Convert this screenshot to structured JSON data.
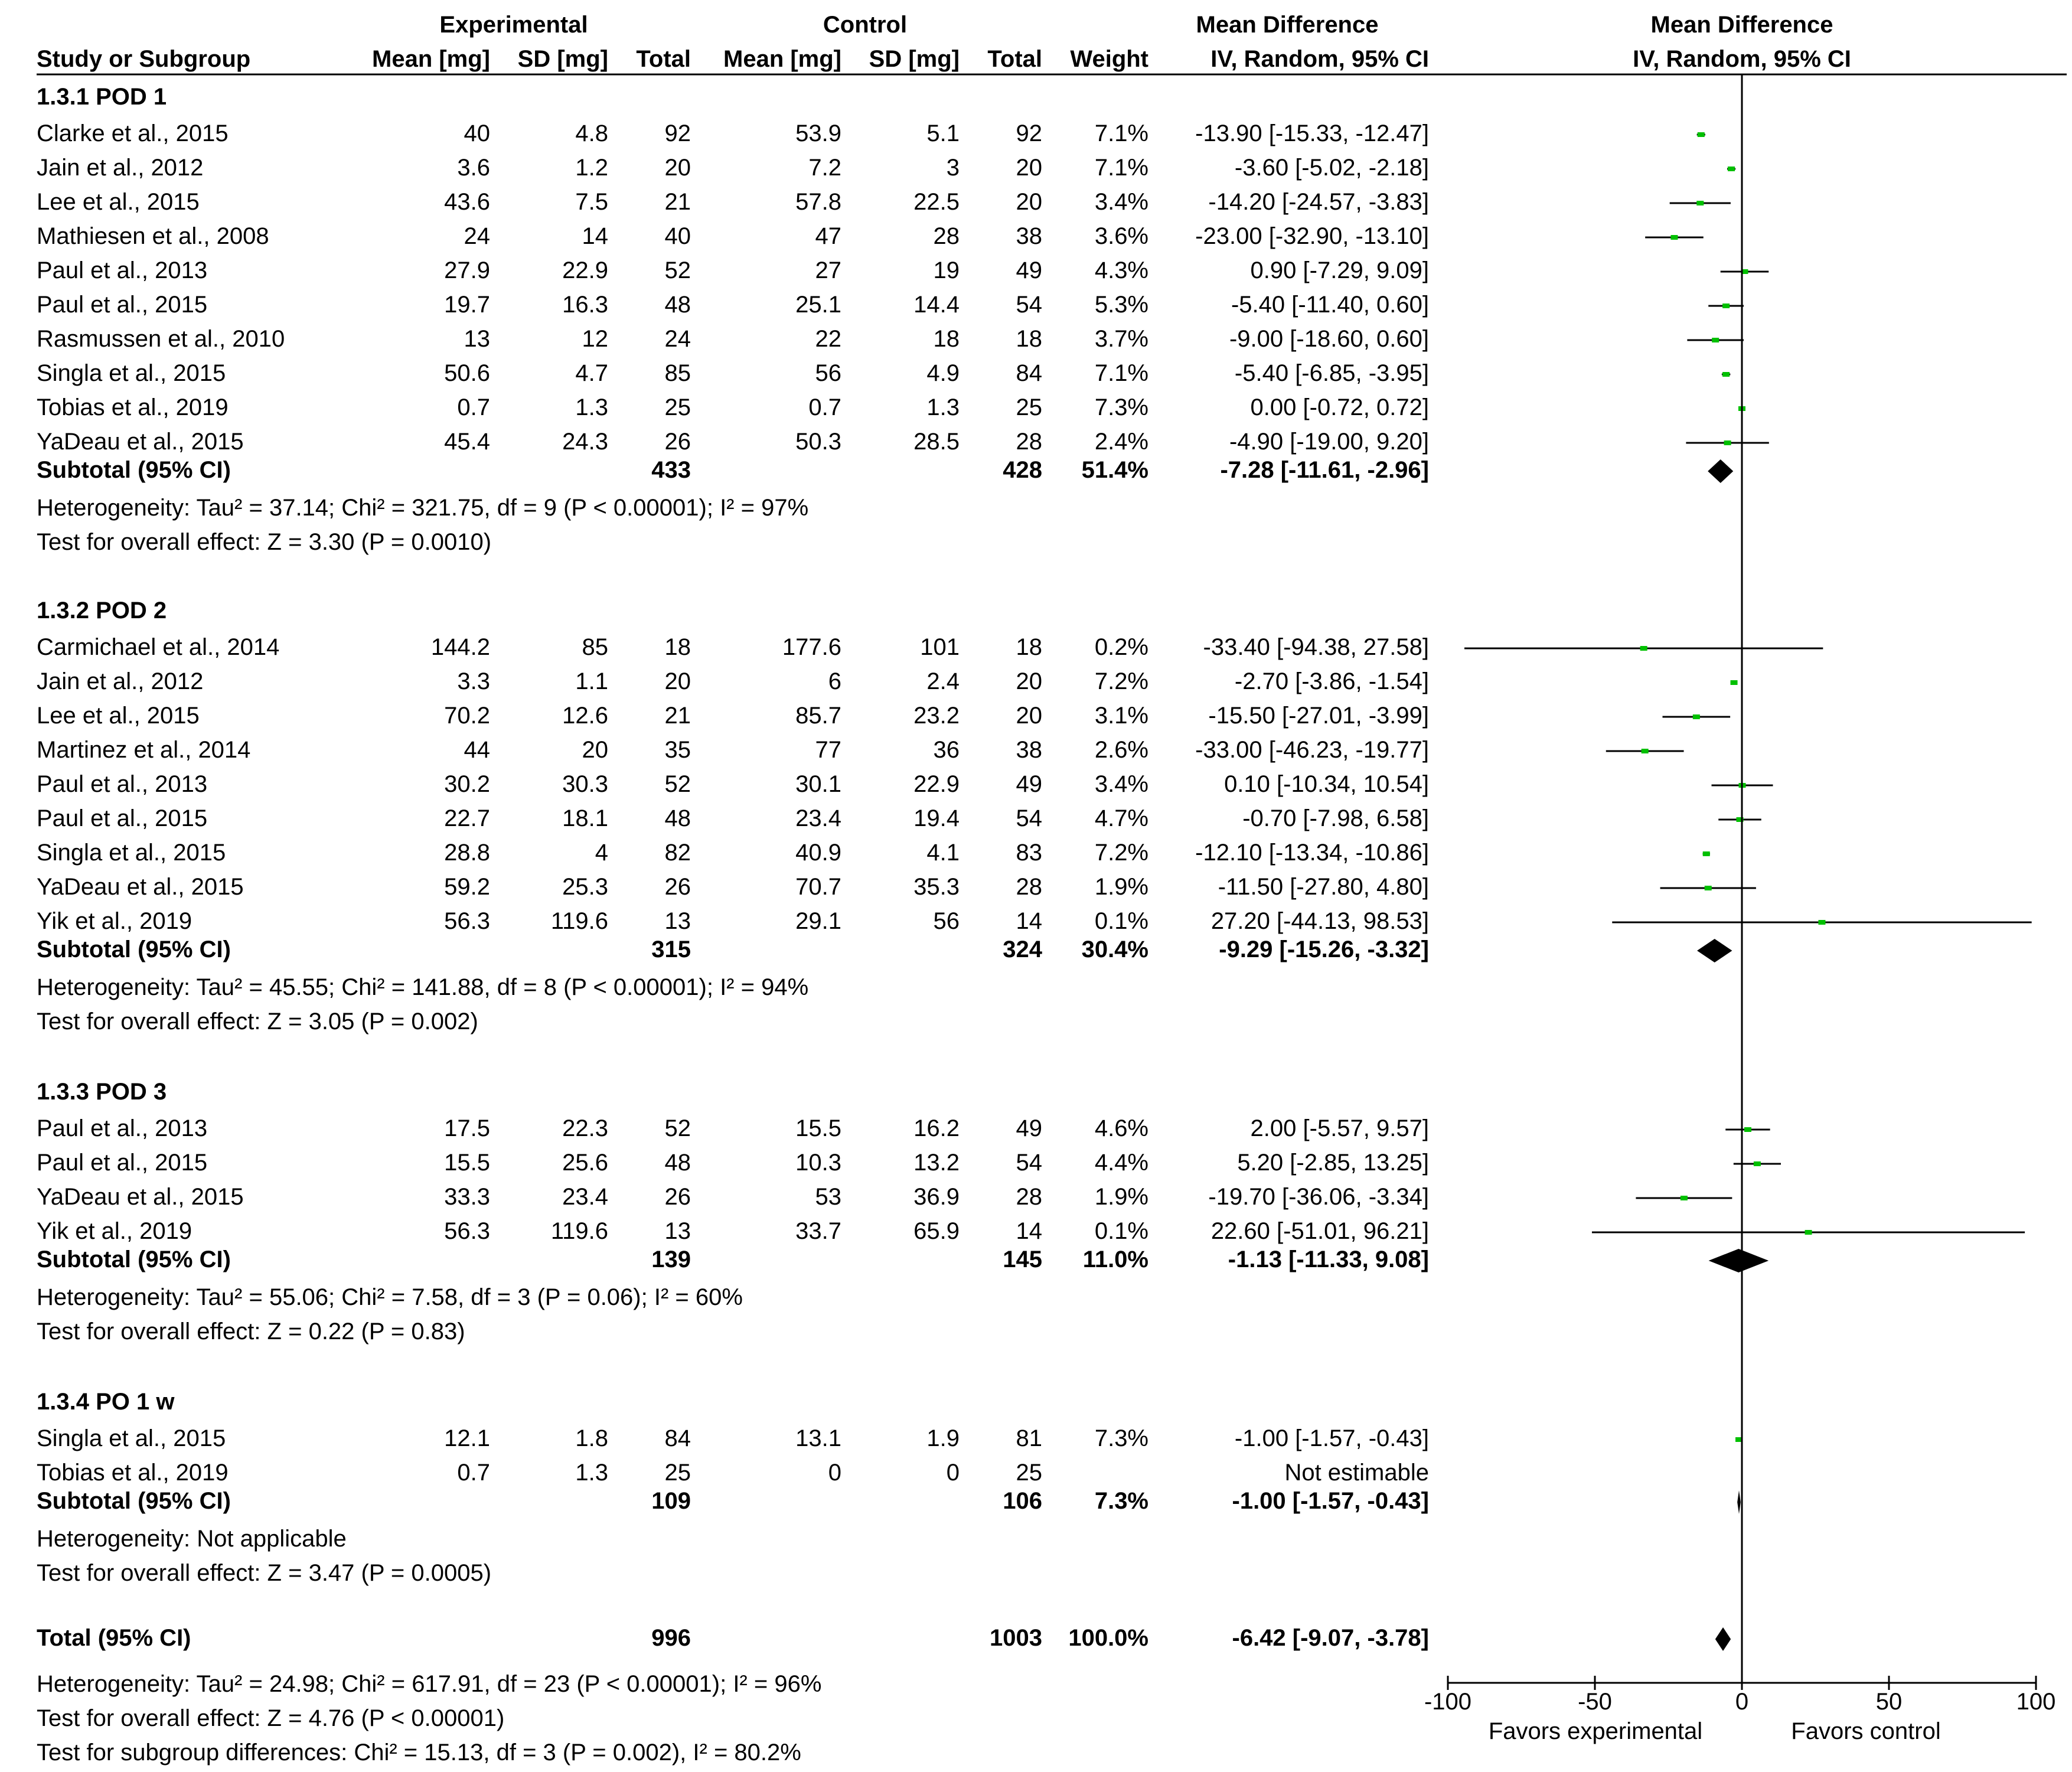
{
  "headers": {
    "experimental": "Experimental",
    "control": "Control",
    "mean_difference": "Mean Difference",
    "study": "Study or Subgroup",
    "mean_mg": "Mean [mg]",
    "sd_mg": "SD [mg]",
    "total": "Total",
    "weight": "Weight",
    "method": "IV, Random, 95% CI"
  },
  "chart_data": {
    "type": "forest",
    "title": "Mean Difference",
    "method": "IV, Random, 95% CI",
    "xlim": [
      -100,
      100
    ],
    "ticks": [
      "-100",
      "-50",
      "0",
      "50",
      "100"
    ],
    "tick_values": [
      -100,
      -50,
      0,
      50,
      100
    ],
    "xlabel_left": "Favors experimental",
    "xlabel_right": "Favors control",
    "groups": [
      {
        "label": "1.3.1 POD 1",
        "studies": [
          {
            "name": "Clarke et al., 2015",
            "e_mean": "40",
            "e_sd": "4.8",
            "e_total": "92",
            "c_mean": "53.9",
            "c_sd": "5.1",
            "c_total": "92",
            "weight": "7.1%",
            "ci": "-13.90 [-15.33, -12.47]",
            "md": -13.9,
            "lo": -15.33,
            "hi": -12.47
          },
          {
            "name": "Jain et al., 2012",
            "e_mean": "3.6",
            "e_sd": "1.2",
            "e_total": "20",
            "c_mean": "7.2",
            "c_sd": "3",
            "c_total": "20",
            "weight": "7.1%",
            "ci": "-3.60 [-5.02, -2.18]",
            "md": -3.6,
            "lo": -5.02,
            "hi": -2.18
          },
          {
            "name": "Lee et al., 2015",
            "e_mean": "43.6",
            "e_sd": "7.5",
            "e_total": "21",
            "c_mean": "57.8",
            "c_sd": "22.5",
            "c_total": "20",
            "weight": "3.4%",
            "ci": "-14.20 [-24.57, -3.83]",
            "md": -14.2,
            "lo": -24.57,
            "hi": -3.83
          },
          {
            "name": "Mathiesen et al., 2008",
            "e_mean": "24",
            "e_sd": "14",
            "e_total": "40",
            "c_mean": "47",
            "c_sd": "28",
            "c_total": "38",
            "weight": "3.6%",
            "ci": "-23.00 [-32.90, -13.10]",
            "md": -23.0,
            "lo": -32.9,
            "hi": -13.1
          },
          {
            "name": "Paul et al., 2013",
            "e_mean": "27.9",
            "e_sd": "22.9",
            "e_total": "52",
            "c_mean": "27",
            "c_sd": "19",
            "c_total": "49",
            "weight": "4.3%",
            "ci": "0.90 [-7.29, 9.09]",
            "md": 0.9,
            "lo": -7.29,
            "hi": 9.09
          },
          {
            "name": "Paul et al., 2015",
            "e_mean": "19.7",
            "e_sd": "16.3",
            "e_total": "48",
            "c_mean": "25.1",
            "c_sd": "14.4",
            "c_total": "54",
            "weight": "5.3%",
            "ci": "-5.40 [-11.40, 0.60]",
            "md": -5.4,
            "lo": -11.4,
            "hi": 0.6
          },
          {
            "name": "Rasmussen et al., 2010",
            "e_mean": "13",
            "e_sd": "12",
            "e_total": "24",
            "c_mean": "22",
            "c_sd": "18",
            "c_total": "18",
            "weight": "3.7%",
            "ci": "-9.00 [-18.60, 0.60]",
            "md": -9.0,
            "lo": -18.6,
            "hi": 0.6
          },
          {
            "name": "Singla et al., 2015",
            "e_mean": "50.6",
            "e_sd": "4.7",
            "e_total": "85",
            "c_mean": "56",
            "c_sd": "4.9",
            "c_total": "84",
            "weight": "7.1%",
            "ci": "-5.40 [-6.85, -3.95]",
            "md": -5.4,
            "lo": -6.85,
            "hi": -3.95
          },
          {
            "name": "Tobias et al., 2019",
            "e_mean": "0.7",
            "e_sd": "1.3",
            "e_total": "25",
            "c_mean": "0.7",
            "c_sd": "1.3",
            "c_total": "25",
            "weight": "7.3%",
            "ci": "0.00 [-0.72, 0.72]",
            "md": 0.0,
            "lo": -0.72,
            "hi": 0.72
          },
          {
            "name": "YaDeau et al., 2015",
            "e_mean": "45.4",
            "e_sd": "24.3",
            "e_total": "26",
            "c_mean": "50.3",
            "c_sd": "28.5",
            "c_total": "28",
            "weight": "2.4%",
            "ci": "-4.90 [-19.00, 9.20]",
            "md": -4.9,
            "lo": -19.0,
            "hi": 9.2
          }
        ],
        "subtotal": {
          "label": "Subtotal (95% CI)",
          "e_total": "433",
          "c_total": "428",
          "weight": "51.4%",
          "ci": "-7.28 [-11.61, -2.96]",
          "md": -7.28,
          "lo": -11.61,
          "hi": -2.96
        },
        "heterogeneity": "Heterogeneity: Tau² = 37.14; Chi² = 321.75, df = 9 (P < 0.00001); I² = 97%",
        "overall": "Test for overall effect: Z = 3.30 (P = 0.0010)"
      },
      {
        "label": "1.3.2 POD 2",
        "studies": [
          {
            "name": "Carmichael et al., 2014",
            "e_mean": "144.2",
            "e_sd": "85",
            "e_total": "18",
            "c_mean": "177.6",
            "c_sd": "101",
            "c_total": "18",
            "weight": "0.2%",
            "ci": "-33.40 [-94.38, 27.58]",
            "md": -33.4,
            "lo": -94.38,
            "hi": 27.58
          },
          {
            "name": "Jain et al., 2012",
            "e_mean": "3.3",
            "e_sd": "1.1",
            "e_total": "20",
            "c_mean": "6",
            "c_sd": "2.4",
            "c_total": "20",
            "weight": "7.2%",
            "ci": "-2.70 [-3.86, -1.54]",
            "md": -2.7,
            "lo": -3.86,
            "hi": -1.54
          },
          {
            "name": "Lee et al., 2015",
            "e_mean": "70.2",
            "e_sd": "12.6",
            "e_total": "21",
            "c_mean": "85.7",
            "c_sd": "23.2",
            "c_total": "20",
            "weight": "3.1%",
            "ci": "-15.50 [-27.01, -3.99]",
            "md": -15.5,
            "lo": -27.01,
            "hi": -3.99
          },
          {
            "name": "Martinez et al., 2014",
            "e_mean": "44",
            "e_sd": "20",
            "e_total": "35",
            "c_mean": "77",
            "c_sd": "36",
            "c_total": "38",
            "weight": "2.6%",
            "ci": "-33.00 [-46.23, -19.77]",
            "md": -33.0,
            "lo": -46.23,
            "hi": -19.77
          },
          {
            "name": "Paul et al., 2013",
            "e_mean": "30.2",
            "e_sd": "30.3",
            "e_total": "52",
            "c_mean": "30.1",
            "c_sd": "22.9",
            "c_total": "49",
            "weight": "3.4%",
            "ci": "0.10 [-10.34, 10.54]",
            "md": 0.1,
            "lo": -10.34,
            "hi": 10.54
          },
          {
            "name": "Paul et al., 2015",
            "e_mean": "22.7",
            "e_sd": "18.1",
            "e_total": "48",
            "c_mean": "23.4",
            "c_sd": "19.4",
            "c_total": "54",
            "weight": "4.7%",
            "ci": "-0.70 [-7.98, 6.58]",
            "md": -0.7,
            "lo": -7.98,
            "hi": 6.58
          },
          {
            "name": "Singla et al., 2015",
            "e_mean": "28.8",
            "e_sd": "4",
            "e_total": "82",
            "c_mean": "40.9",
            "c_sd": "4.1",
            "c_total": "83",
            "weight": "7.2%",
            "ci": "-12.10 [-13.34, -10.86]",
            "md": -12.1,
            "lo": -13.34,
            "hi": -10.86
          },
          {
            "name": "YaDeau et al., 2015",
            "e_mean": "59.2",
            "e_sd": "25.3",
            "e_total": "26",
            "c_mean": "70.7",
            "c_sd": "35.3",
            "c_total": "28",
            "weight": "1.9%",
            "ci": "-11.50 [-27.80, 4.80]",
            "md": -11.5,
            "lo": -27.8,
            "hi": 4.8
          },
          {
            "name": "Yik et al., 2019",
            "e_mean": "56.3",
            "e_sd": "119.6",
            "e_total": "13",
            "c_mean": "29.1",
            "c_sd": "56",
            "c_total": "14",
            "weight": "0.1%",
            "ci": "27.20 [-44.13, 98.53]",
            "md": 27.2,
            "lo": -44.13,
            "hi": 98.53
          }
        ],
        "subtotal": {
          "label": "Subtotal (95% CI)",
          "e_total": "315",
          "c_total": "324",
          "weight": "30.4%",
          "ci": "-9.29 [-15.26, -3.32]",
          "md": -9.29,
          "lo": -15.26,
          "hi": -3.32
        },
        "heterogeneity": "Heterogeneity: Tau² = 45.55; Chi² = 141.88, df = 8 (P < 0.00001); I² = 94%",
        "overall": "Test for overall effect: Z = 3.05 (P = 0.002)"
      },
      {
        "label": "1.3.3 POD 3",
        "studies": [
          {
            "name": "Paul et al., 2013",
            "e_mean": "17.5",
            "e_sd": "22.3",
            "e_total": "52",
            "c_mean": "15.5",
            "c_sd": "16.2",
            "c_total": "49",
            "weight": "4.6%",
            "ci": "2.00 [-5.57, 9.57]",
            "md": 2.0,
            "lo": -5.57,
            "hi": 9.57
          },
          {
            "name": "Paul et al., 2015",
            "e_mean": "15.5",
            "e_sd": "25.6",
            "e_total": "48",
            "c_mean": "10.3",
            "c_sd": "13.2",
            "c_total": "54",
            "weight": "4.4%",
            "ci": "5.20 [-2.85, 13.25]",
            "md": 5.2,
            "lo": -2.85,
            "hi": 13.25
          },
          {
            "name": "YaDeau et al., 2015",
            "e_mean": "33.3",
            "e_sd": "23.4",
            "e_total": "26",
            "c_mean": "53",
            "c_sd": "36.9",
            "c_total": "28",
            "weight": "1.9%",
            "ci": "-19.70 [-36.06, -3.34]",
            "md": -19.7,
            "lo": -36.06,
            "hi": -3.34
          },
          {
            "name": "Yik et al., 2019",
            "e_mean": "56.3",
            "e_sd": "119.6",
            "e_total": "13",
            "c_mean": "33.7",
            "c_sd": "65.9",
            "c_total": "14",
            "weight": "0.1%",
            "ci": "22.60 [-51.01, 96.21]",
            "md": 22.6,
            "lo": -51.01,
            "hi": 96.21
          }
        ],
        "subtotal": {
          "label": "Subtotal (95% CI)",
          "e_total": "139",
          "c_total": "145",
          "weight": "11.0%",
          "ci": "-1.13 [-11.33, 9.08]",
          "md": -1.13,
          "lo": -11.33,
          "hi": 9.08
        },
        "heterogeneity": "Heterogeneity: Tau² = 55.06; Chi² = 7.58, df = 3 (P = 0.06); I² = 60%",
        "overall": "Test for overall effect: Z = 0.22 (P = 0.83)"
      },
      {
        "label": "1.3.4 PO 1 w",
        "studies": [
          {
            "name": "Singla et al., 2015",
            "e_mean": "12.1",
            "e_sd": "1.8",
            "e_total": "84",
            "c_mean": "13.1",
            "c_sd": "1.9",
            "c_total": "81",
            "weight": "7.3%",
            "ci": "-1.00 [-1.57, -0.43]",
            "md": -1.0,
            "lo": -1.57,
            "hi": -0.43
          },
          {
            "name": "Tobias et al., 2019",
            "e_mean": "0.7",
            "e_sd": "1.3",
            "e_total": "25",
            "c_mean": "0",
            "c_sd": "0",
            "c_total": "25",
            "weight": "",
            "ci": "Not estimable",
            "md": null,
            "lo": null,
            "hi": null
          }
        ],
        "subtotal": {
          "label": "Subtotal (95% CI)",
          "e_total": "109",
          "c_total": "106",
          "weight": "7.3%",
          "ci": "-1.00 [-1.57, -0.43]",
          "md": -1.0,
          "lo": -1.57,
          "hi": -0.43
        },
        "heterogeneity": "Heterogeneity: Not applicable",
        "overall": "Test for overall effect: Z = 3.47 (P = 0.0005)"
      }
    ],
    "total": {
      "label": "Total (95% CI)",
      "e_total": "996",
      "c_total": "1003",
      "weight": "100.0%",
      "ci": "-6.42 [-9.07, -3.78]",
      "md": -6.42,
      "lo": -9.07,
      "hi": -3.78
    },
    "footer": [
      "Heterogeneity: Tau² = 24.98; Chi² = 617.91, df = 23 (P < 0.00001); I² = 96%",
      "Test for overall effect: Z = 4.76 (P < 0.00001)",
      "Test for subgroup differences: Chi² = 15.13, df = 3 (P = 0.002), I² = 80.2%"
    ],
    "colors": {
      "point": "#00c000",
      "line": "#000000",
      "diamond": "#000000"
    }
  }
}
